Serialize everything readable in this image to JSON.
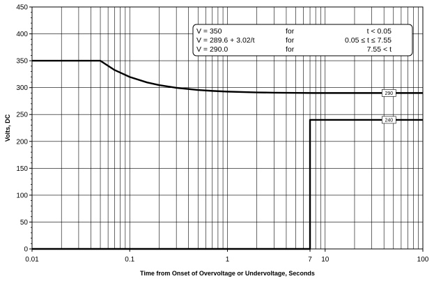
{
  "chart_data": {
    "type": "line",
    "title": "",
    "xlabel": "Time from Onset of Overvoltage or Undervoltage, Seconds",
    "ylabel": "Volts, DC",
    "xscale": "log",
    "xlim": [
      0.01,
      100
    ],
    "ylim": [
      0,
      450
    ],
    "grid": true,
    "x_tick_labels": [
      "0.01",
      "0.1",
      "1",
      "7",
      "10",
      "100"
    ],
    "y_tick_labels": [
      "0",
      "50",
      "100",
      "150",
      "200",
      "250",
      "300",
      "350",
      "400",
      "450"
    ],
    "series": [
      {
        "x": [
          0.01,
          0.05,
          0.07,
          0.1,
          0.15,
          0.2,
          0.3,
          0.5,
          0.7,
          1,
          2,
          3,
          5,
          7.55,
          20,
          50,
          100
        ],
        "y": [
          350,
          350,
          332.7,
          319.8,
          309.7,
          304.7,
          299.7,
          295.6,
          293.9,
          292.6,
          291.1,
          290.6,
          290.2,
          290.0,
          290.0,
          290.0,
          290.0
        ]
      },
      {
        "x": [
          0.01,
          7,
          7,
          100
        ],
        "y": [
          0,
          0,
          240,
          240
        ]
      }
    ],
    "annotations": [
      {
        "text": "290",
        "x": 45,
        "y": 290
      },
      {
        "text": "240",
        "x": 45,
        "y": 240
      }
    ],
    "legend_box": {
      "placement": "top-right",
      "rows": [
        {
          "formula": "V = 350",
          "word": "for",
          "condition": "t < 0.05"
        },
        {
          "formula": "V = 289.6 + 3.02/t",
          "word": "for",
          "condition": "0.05 ≤ t ≤ 7.55"
        },
        {
          "formula": "V = 290.0",
          "word": "for",
          "condition": "7.55 < t"
        }
      ]
    }
  }
}
